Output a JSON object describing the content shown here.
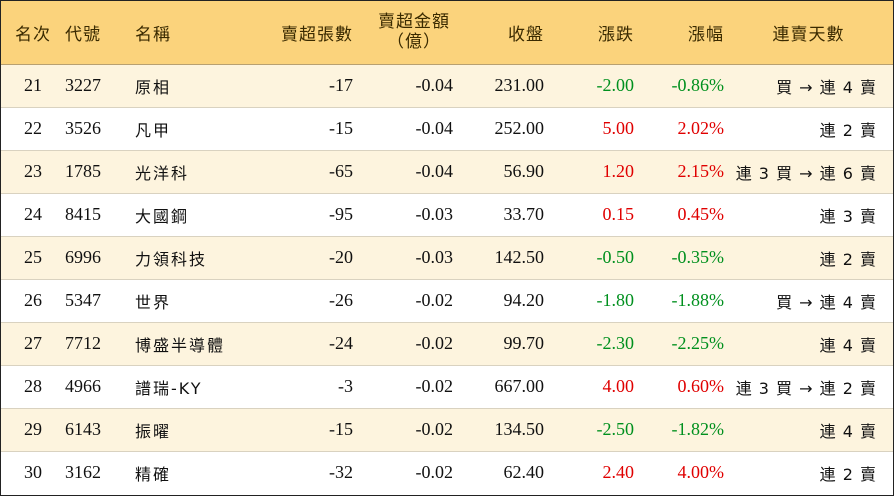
{
  "headers": {
    "rank": "名次",
    "code": "代號",
    "name": "名稱",
    "sell_lots": "賣超張數",
    "sell_amount_line1": "賣超金額",
    "sell_amount_line2": "（億）",
    "close": "收盤",
    "change": "漲跌",
    "pct": "漲幅",
    "streak": "連賣天數"
  },
  "rows": [
    {
      "rank": "21",
      "code": "3227",
      "name": "原相",
      "sell_lots": "-17",
      "sell_amount": "-0.04",
      "close": "231.00",
      "change": "-2.00",
      "pct": "-0.86%",
      "dir": "neg",
      "streak": "買 → 連 4 賣"
    },
    {
      "rank": "22",
      "code": "3526",
      "name": "凡甲",
      "sell_lots": "-15",
      "sell_amount": "-0.04",
      "close": "252.00",
      "change": "5.00",
      "pct": "2.02%",
      "dir": "pos",
      "streak": "連 2 賣"
    },
    {
      "rank": "23",
      "code": "1785",
      "name": "光洋科",
      "sell_lots": "-65",
      "sell_amount": "-0.04",
      "close": "56.90",
      "change": "1.20",
      "pct": "2.15%",
      "dir": "pos",
      "streak": "連 3 買 → 連 6 賣"
    },
    {
      "rank": "24",
      "code": "8415",
      "name": "大國鋼",
      "sell_lots": "-95",
      "sell_amount": "-0.03",
      "close": "33.70",
      "change": "0.15",
      "pct": "0.45%",
      "dir": "pos",
      "streak": "連 3 賣"
    },
    {
      "rank": "25",
      "code": "6996",
      "name": "力領科技",
      "sell_lots": "-20",
      "sell_amount": "-0.03",
      "close": "142.50",
      "change": "-0.50",
      "pct": "-0.35%",
      "dir": "neg",
      "streak": "連 2 賣"
    },
    {
      "rank": "26",
      "code": "5347",
      "name": "世界",
      "sell_lots": "-26",
      "sell_amount": "-0.02",
      "close": "94.20",
      "change": "-1.80",
      "pct": "-1.88%",
      "dir": "neg",
      "streak": "買 → 連 4 賣"
    },
    {
      "rank": "27",
      "code": "7712",
      "name": "博盛半導體",
      "sell_lots": "-24",
      "sell_amount": "-0.02",
      "close": "99.70",
      "change": "-2.30",
      "pct": "-2.25%",
      "dir": "neg",
      "streak": "連 4 賣"
    },
    {
      "rank": "28",
      "code": "4966",
      "name": "譜瑞-KY",
      "sell_lots": "-3",
      "sell_amount": "-0.02",
      "close": "667.00",
      "change": "4.00",
      "pct": "0.60%",
      "dir": "pos",
      "streak": "連 3 買 → 連 2 賣"
    },
    {
      "rank": "29",
      "code": "6143",
      "name": "振曜",
      "sell_lots": "-15",
      "sell_amount": "-0.02",
      "close": "134.50",
      "change": "-2.50",
      "pct": "-1.82%",
      "dir": "neg",
      "streak": "連 4 賣"
    },
    {
      "rank": "30",
      "code": "3162",
      "name": "精確",
      "sell_lots": "-32",
      "sell_amount": "-0.02",
      "close": "62.40",
      "change": "2.40",
      "pct": "4.00%",
      "dir": "pos",
      "streak": "連 2 賣"
    }
  ],
  "colors": {
    "header_bg": "#fbd37c",
    "stripe_bg": "#fdf4de",
    "up": "#e00000",
    "down": "#00901e"
  }
}
